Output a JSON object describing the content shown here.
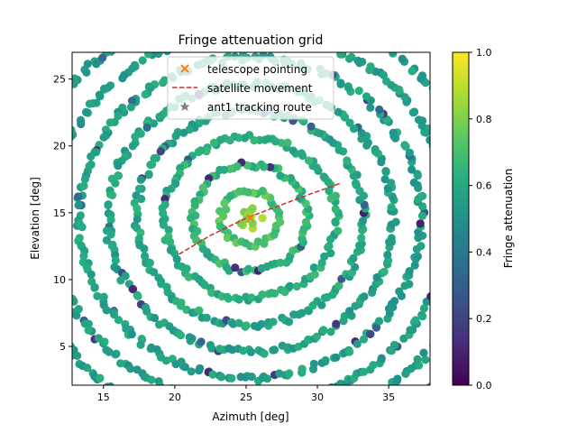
{
  "chart_data": {
    "type": "scatter",
    "title": "Fringe attenuation grid",
    "xlabel": "Azimuth [deg]",
    "ylabel": "Elevation [deg]",
    "xlim": [
      12.8,
      37.9
    ],
    "ylim": [
      2.1,
      27.0
    ],
    "xticks": [
      15,
      20,
      25,
      30,
      35
    ],
    "yticks": [
      5,
      10,
      15,
      20,
      25
    ],
    "grid": false,
    "colormap": "viridis",
    "colorbar": {
      "label": "Fringe attenuation",
      "range": [
        0.0,
        1.0
      ],
      "ticks": [
        0.0,
        0.2,
        0.4,
        0.6,
        0.8,
        1.0
      ],
      "tick_labels": [
        "0.0",
        "0.2",
        "0.4",
        "0.6",
        "0.8",
        "1.0"
      ]
    },
    "scatter_pattern": {
      "center": [
        25.3,
        14.6
      ],
      "ring_spacing_deg": 2.0,
      "attenuation_center": 0.8,
      "attenuation_outer": 0.55
    },
    "telescope_pointing": {
      "x": 25.3,
      "y": 14.6
    },
    "satellite_movement": {
      "x": [
        20.3,
        22.5,
        25.0,
        27.5,
        29.5,
        31.6
      ],
      "y": [
        11.9,
        13.3,
        14.6,
        15.6,
        16.4,
        17.2
      ]
    },
    "legend": {
      "placement": "upper center",
      "entries": [
        {
          "label": "telescope pointing",
          "marker": "x",
          "color": "#ff7f0e"
        },
        {
          "label": "satellite movement",
          "marker": "dashed-line",
          "color": "#d62728"
        },
        {
          "label": "ant1 tracking route",
          "marker": "star",
          "color": "#7f7f7f"
        }
      ]
    }
  }
}
